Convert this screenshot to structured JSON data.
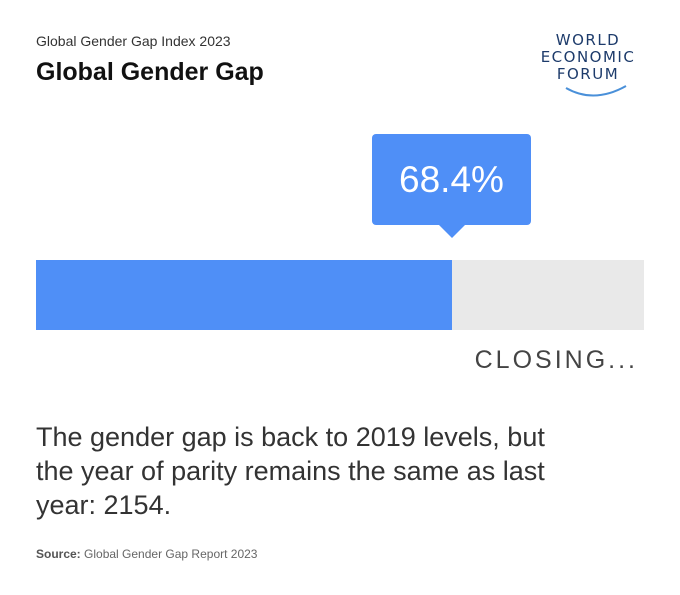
{
  "header": {
    "subtitle": "Global Gender Gap Index 2023",
    "title": "Global Gender Gap"
  },
  "logo": {
    "lines": [
      "WORLD",
      "ECONOMIC",
      "FORUM"
    ]
  },
  "chart_data": {
    "type": "bar",
    "title": "Global Gender Gap",
    "subtitle": "Global Gender Gap Index 2023",
    "categories": [
      "Global Gender Gap"
    ],
    "values": [
      68.4
    ],
    "ylim": [
      0,
      100
    ],
    "data_label": "68.4%",
    "status_label": "CLOSING...",
    "xlabel": "",
    "ylabel": ""
  },
  "description": "The gender gap is back to 2019 levels, but the year of parity remains the same as last year: 2154.",
  "source": {
    "label": "Source:",
    "text": "Global Gender Gap Report 2023"
  },
  "colors": {
    "accent": "#4f8ff7",
    "track": "#e9e9e9",
    "logo": "#1d3b6b"
  }
}
